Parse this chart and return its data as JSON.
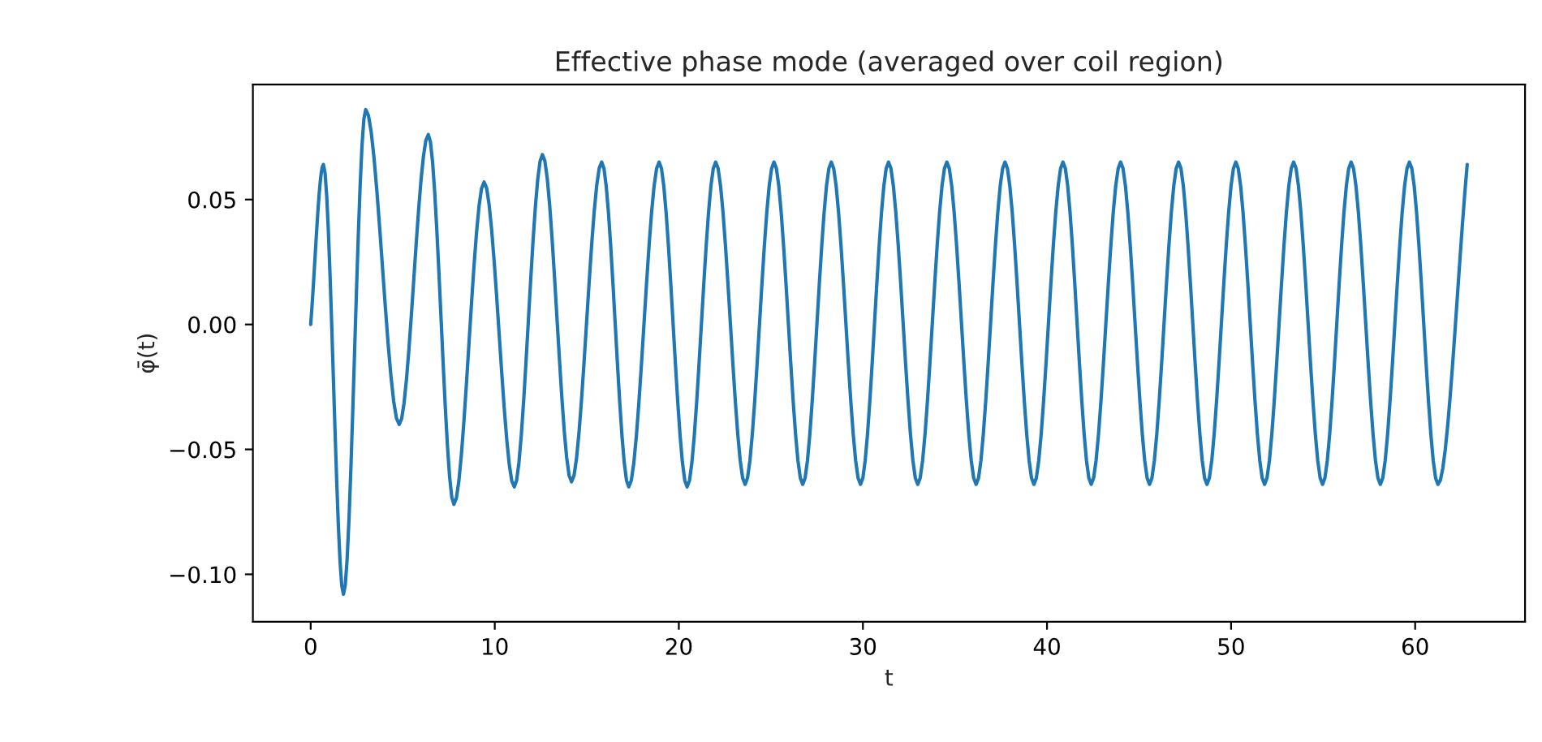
{
  "chart_data": {
    "type": "line",
    "title": "Effective phase mode (averaged over coil region)",
    "xlabel": "t",
    "ylabel": "φ̄(t)",
    "series": [
      {
        "color": "#1f77b4",
        "x": [
          0,
          0.69,
          1.78,
          2.99,
          4.81,
          6.39,
          7.78,
          9.42,
          11.06,
          12.59,
          14.17,
          15.81,
          17.28,
          18.93,
          20.45,
          22.0,
          23.6,
          25.17,
          26.73,
          28.28,
          29.87,
          31.39,
          32.98,
          34.56,
          36.15,
          37.72,
          39.29,
          40.87,
          42.4,
          44.0,
          45.57,
          47.15,
          48.69,
          50.26,
          51.82,
          53.4,
          54.97,
          56.52,
          58.11,
          59.69,
          61.24,
          62.83
        ],
        "values": [
          0,
          0.064,
          -0.108,
          0.086,
          -0.04,
          0.076,
          -0.072,
          0.057,
          -0.065,
          0.068,
          -0.063,
          0.065,
          -0.065,
          0.065,
          -0.065,
          0.065,
          -0.064,
          0.065,
          -0.064,
          0.065,
          -0.064,
          0.065,
          -0.064,
          0.065,
          -0.064,
          0.065,
          -0.064,
          0.065,
          -0.064,
          0.065,
          -0.064,
          0.065,
          -0.064,
          0.065,
          -0.064,
          0.065,
          -0.064,
          0.065,
          -0.064,
          0.065,
          -0.064,
          0.064
        ]
      }
    ],
    "xlim": [
      -3.14,
      65.97
    ],
    "ylim": [
      -0.119,
      0.096
    ],
    "xticks": [
      0,
      10,
      20,
      30,
      40,
      50,
      60
    ],
    "yticks": [
      {
        "value": -0.1,
        "label": "−0.10"
      },
      {
        "value": -0.05,
        "label": "−0.05"
      },
      {
        "value": 0.0,
        "label": "0.00"
      },
      {
        "value": 0.05,
        "label": "0.05"
      }
    ],
    "marker": "none",
    "line_style": "solid"
  }
}
